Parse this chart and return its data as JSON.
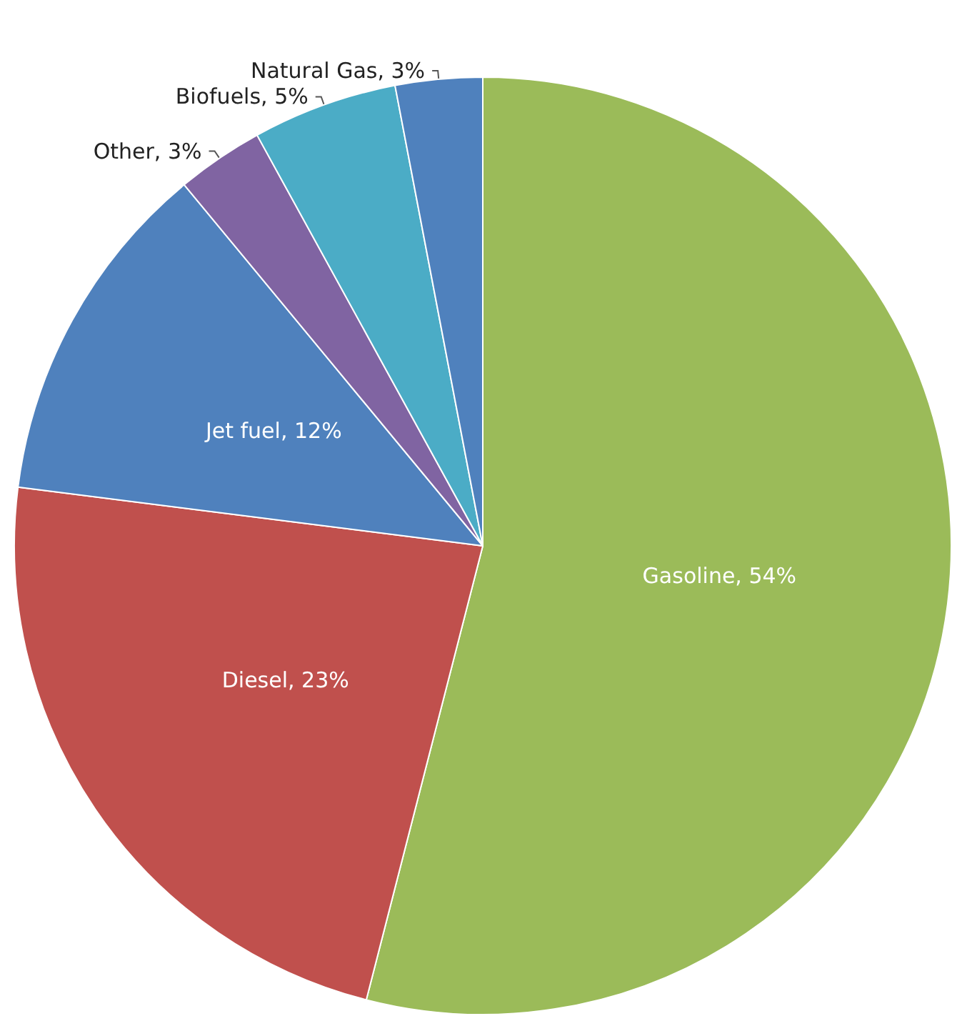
{
  "chart_data": {
    "type": "pie",
    "categories": [
      "Gasoline",
      "Diesel",
      "Jet fuel",
      "Other",
      "Biofuels",
      "Natural Gas"
    ],
    "values": [
      54,
      23,
      12,
      3,
      5,
      3
    ],
    "value_labels": [
      "54%",
      "23%",
      "12%",
      "3%",
      "5%",
      "3%"
    ],
    "colors": [
      "#9bbb59",
      "#c0504d",
      "#4f81bd",
      "#8064a2",
      "#4bacc6",
      "#4f81bd"
    ],
    "legend": false
  }
}
